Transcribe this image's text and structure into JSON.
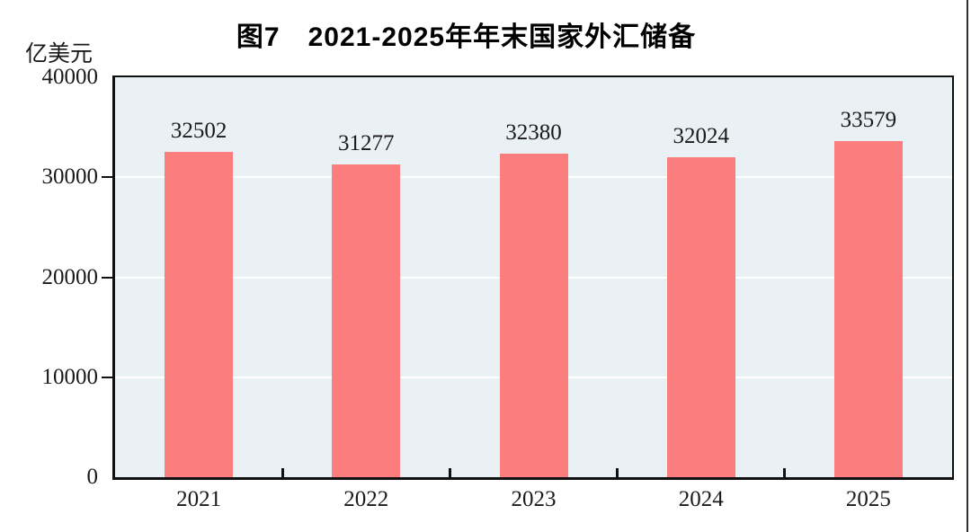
{
  "chart_data": {
    "type": "bar",
    "title": "图7　2021-2025年年末国家外汇储备",
    "unit_label": "亿美元",
    "categories": [
      "2021",
      "2022",
      "2023",
      "2024",
      "2025"
    ],
    "values": [
      32502,
      31277,
      32380,
      32024,
      33579
    ],
    "ylim": [
      0,
      40000
    ],
    "yticks": [
      0,
      10000,
      20000,
      30000,
      40000
    ],
    "ytick_marks": [
      10000,
      20000,
      30000
    ],
    "gridline_values": [
      10000,
      20000,
      30000
    ],
    "data_labels": true,
    "legend": "none",
    "grid": "horizontal",
    "colors": {
      "bar": "#FC7D7D",
      "plot_background": "#EAF1F4",
      "gridline": "#FFFFFF",
      "axis": "#111111",
      "text": "#1A1A1A",
      "page_edge": "#2E2E2E"
    }
  }
}
